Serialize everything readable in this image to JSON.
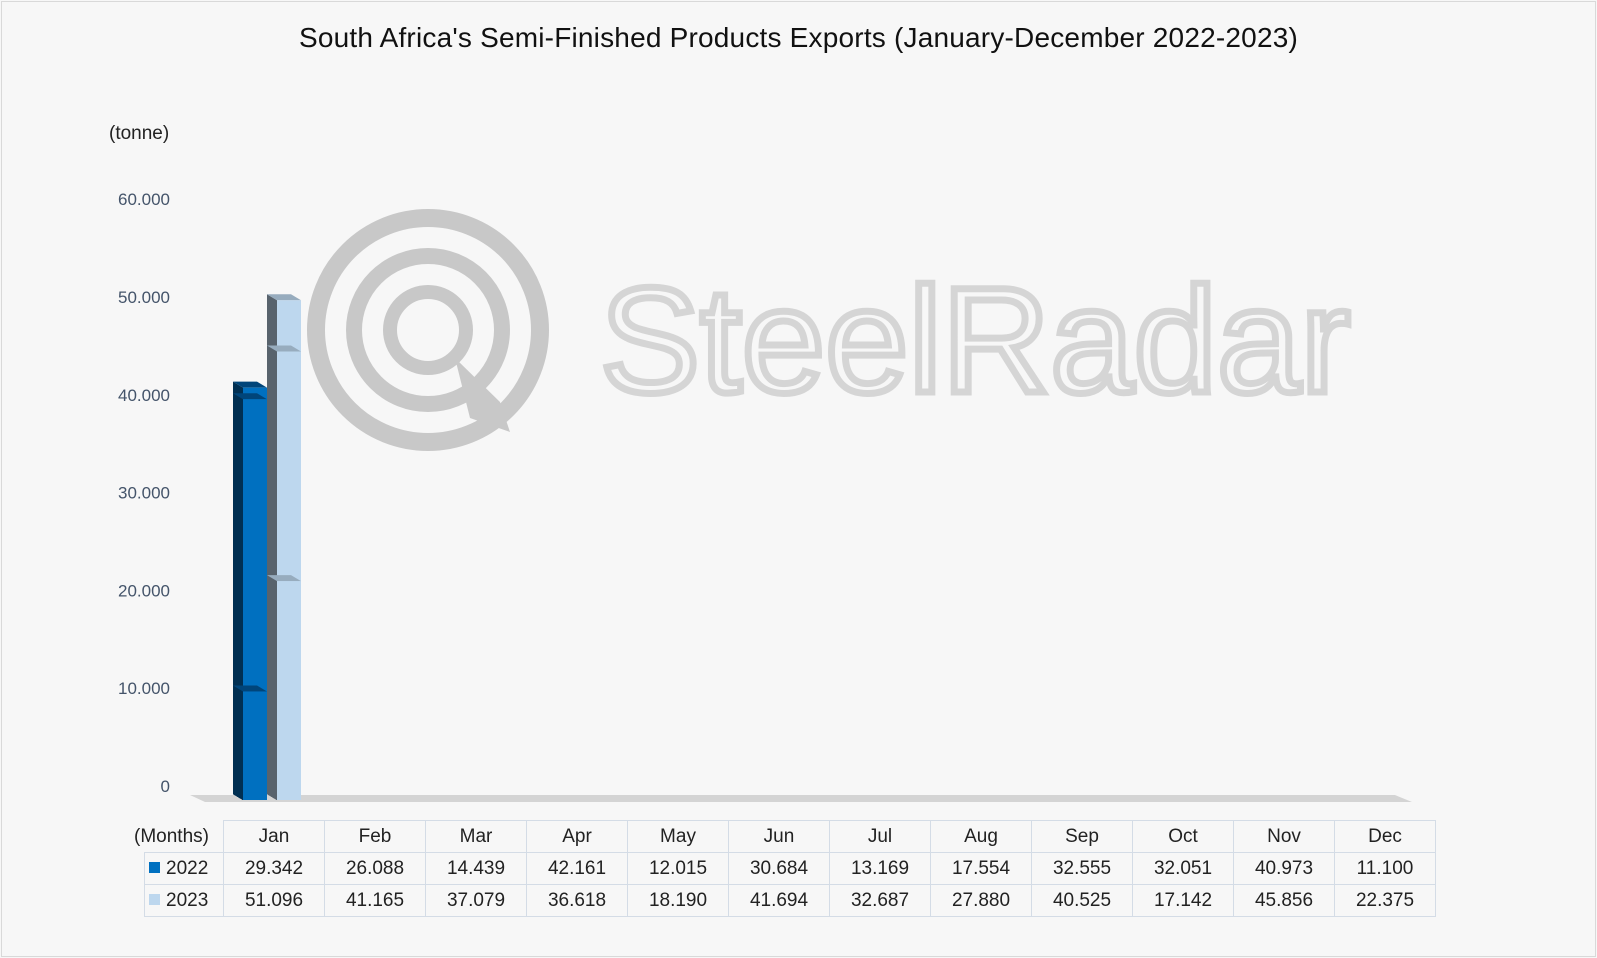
{
  "chart_data": {
    "type": "bar",
    "title": "South Africa's Semi-Finished Products Exports (January-December 2022-2023)",
    "ylabel": "(tonne)",
    "xlabel": "(Months)",
    "categories": [
      "Jan",
      "Feb",
      "Mar",
      "Apr",
      "May",
      "Jun",
      "Jul",
      "Aug",
      "Sep",
      "Oct",
      "Nov",
      "Dec"
    ],
    "series": [
      {
        "name": "2022",
        "color": "#0070c0",
        "values": [
          29342,
          26088,
          14439,
          42161,
          12015,
          30684,
          13169,
          17554,
          32555,
          32051,
          40973,
          11100
        ],
        "labels": [
          "29.342",
          "26.088",
          "14.439",
          "42.161",
          "12.015",
          "30.684",
          "13.169",
          "17.554",
          "32.555",
          "32.051",
          "40.973",
          "11.100"
        ]
      },
      {
        "name": "2023",
        "color": "#bdd7ee",
        "values": [
          51096,
          41165,
          37079,
          36618,
          18190,
          41694,
          32687,
          27880,
          40525,
          17142,
          45856,
          22375
        ],
        "labels": [
          "51.096",
          "41.165",
          "37.079",
          "36.618",
          "18.190",
          "41.694",
          "32.687",
          "27.880",
          "40.525",
          "17.142",
          "45.856",
          "22.375"
        ]
      }
    ],
    "ylim": [
      0,
      60000
    ],
    "yticks": [
      0,
      10000,
      20000,
      30000,
      40000,
      50000,
      60000
    ],
    "ytick_labels": [
      "0",
      "10.000",
      "20.000",
      "30.000",
      "40.000",
      "50.000",
      "60.000"
    ],
    "grid": false,
    "legend": "data-table"
  },
  "watermark": {
    "text": "SteelRadar"
  }
}
